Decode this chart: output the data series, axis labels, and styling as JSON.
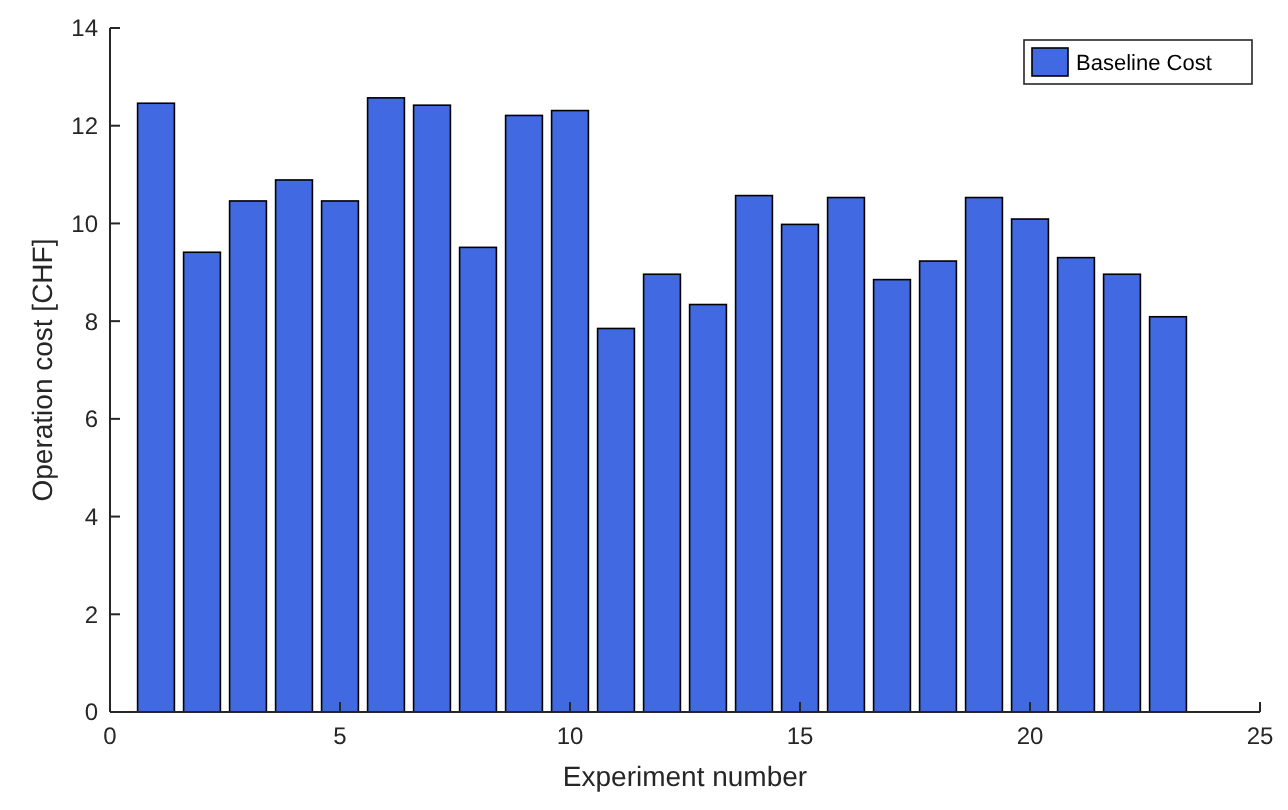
{
  "chart_data": {
    "type": "bar",
    "xlabel": "Experiment number",
    "ylabel": "Operation cost [CHF]",
    "x": [
      1,
      2,
      3,
      4,
      5,
      6,
      7,
      8,
      9,
      10,
      11,
      12,
      13,
      14,
      15,
      16,
      17,
      18,
      19,
      20,
      21,
      22,
      23
    ],
    "series": [
      {
        "name": "Baseline Cost",
        "color": "#4169e1",
        "values": [
          12.46,
          9.41,
          10.46,
          10.89,
          10.46,
          12.57,
          12.42,
          9.51,
          12.21,
          12.31,
          7.85,
          8.96,
          8.34,
          10.57,
          9.98,
          10.53,
          8.85,
          9.23,
          10.53,
          10.09,
          9.3,
          8.96,
          8.09
        ]
      }
    ],
    "xlim": [
      0,
      25
    ],
    "xticks": [
      0,
      5,
      10,
      15,
      20,
      25
    ],
    "ylim": [
      0,
      14
    ],
    "yticks": [
      0,
      2,
      4,
      6,
      8,
      10,
      12,
      14
    ],
    "legend": "top right"
  }
}
